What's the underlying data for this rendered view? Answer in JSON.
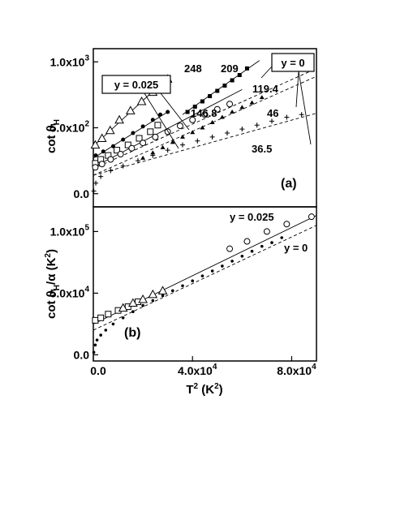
{
  "chart_data": [
    {
      "type": "scatter",
      "panel_label": "(a)",
      "ylabel": "cot θ",
      "ylabel_sub": "H",
      "xlim": [
        0,
        90000
      ],
      "ylim": [
        -100,
        1100
      ],
      "y_ticks": [
        {
          "value": 0,
          "label": "0.0"
        },
        {
          "value": 500,
          "label": "5.0x10",
          "exp": "2"
        },
        {
          "value": 1000,
          "label": "1.0x10",
          "exp": "3"
        }
      ],
      "boxes": {
        "left": "y = 0.025",
        "right": "y = 0"
      },
      "annotations": [
        "248",
        "209",
        "119.4",
        "146.8",
        "46",
        "36.5"
      ],
      "series": [
        {
          "marker": "triangle",
          "points": [
            [
              800,
              370
            ],
            [
              3500,
              420
            ],
            [
              6800,
              480
            ],
            [
              10500,
              560
            ],
            [
              15000,
              630
            ],
            [
              19500,
              700
            ],
            [
              24000,
              770
            ],
            [
              28500,
              840
            ],
            [
              30000,
              870
            ]
          ],
          "fit": [
            [
              0,
              360
            ],
            [
              30000,
              880
            ]
          ]
        },
        {
          "marker": "filled-square",
          "points": [
            [
              38000,
              620
            ],
            [
              41000,
              660
            ],
            [
              44000,
              700
            ],
            [
              47000,
              740
            ],
            [
              50000,
              780
            ],
            [
              53000,
              820
            ],
            [
              56000,
              860
            ],
            [
              59000,
              900
            ],
            [
              62000,
              950
            ]
          ],
          "fit": [
            [
              36000,
              600
            ],
            [
              67000,
              1010
            ]
          ]
        },
        {
          "marker": "filled-circle",
          "points": [
            [
              1000,
              290
            ],
            [
              4000,
              320
            ],
            [
              8000,
              360
            ],
            [
              12000,
              410
            ],
            [
              16000,
              460
            ],
            [
              20000,
              510
            ],
            [
              24000,
              560
            ],
            [
              27000,
              600
            ],
            [
              30000,
              620
            ]
          ],
          "fit": [
            [
              0,
              270
            ],
            [
              30000,
              620
            ]
          ]
        },
        {
          "marker": "open-square",
          "points": [
            [
              800,
              230
            ],
            [
              3000,
              260
            ],
            [
              6000,
              290
            ],
            [
              9500,
              330
            ],
            [
              14000,
              370
            ],
            [
              18500,
              420
            ],
            [
              23000,
              470
            ],
            [
              26000,
              520
            ]
          ],
          "fit": [
            [
              0,
              200
            ],
            [
              60000,
              790
            ]
          ]
        },
        {
          "marker": "open-circle",
          "points": [
            [
              800,
              200
            ],
            [
              3500,
              225
            ],
            [
              7000,
              260
            ],
            [
              11000,
              300
            ],
            [
              15500,
              345
            ],
            [
              20000,
              385
            ],
            [
              25000,
              430
            ],
            [
              30000,
              470
            ],
            [
              35000,
              515
            ],
            [
              40000,
              560
            ],
            [
              45000,
              600
            ],
            [
              50000,
              640
            ],
            [
              55000,
              680
            ]
          ],
          "fit": [
            [
              0,
              190
            ],
            [
              90000,
              950
            ]
          ]
        },
        {
          "marker": "small-triangle",
          "points": [
            [
              20000,
              270
            ],
            [
              24000,
              310
            ],
            [
              28000,
              350
            ],
            [
              32000,
              390
            ],
            [
              36000,
              430
            ],
            [
              40000,
              465
            ],
            [
              44000,
              500
            ],
            [
              48000,
              540
            ],
            [
              52000,
              580
            ],
            [
              56000,
              620
            ],
            [
              60000,
              655
            ],
            [
              64000,
              690
            ],
            [
              68000,
              730
            ]
          ],
          "fit": [
            [
              0,
              140
            ],
            [
              90000,
              890
            ]
          ]
        },
        {
          "marker": "plus",
          "points": [
            [
              200,
              20
            ],
            [
              1000,
              80
            ],
            [
              3000,
              130
            ],
            [
              7000,
              175
            ],
            [
              12000,
              210
            ],
            [
              18000,
              250
            ],
            [
              24000,
              290
            ],
            [
              30000,
              330
            ],
            [
              36000,
              370
            ],
            [
              42000,
              400
            ],
            [
              48000,
              430
            ],
            [
              54000,
              460
            ],
            [
              60000,
              490
            ],
            [
              66000,
              520
            ],
            [
              72000,
              550
            ],
            [
              78000,
              580
            ],
            [
              84000,
              600
            ]
          ],
          "fit": [
            [
              0,
              140
            ],
            [
              90000,
              610
            ]
          ]
        }
      ]
    },
    {
      "type": "scatter",
      "panel_label": "(b)",
      "ylabel": "cot θ",
      "ylabel_sub": "H",
      "ylabel_tail": "/α (K",
      "ylabel_exp": "2",
      "ylabel_end": ")",
      "xlabel": "T",
      "xlabel_exp": "2",
      "xlabel_tail": " (K",
      "xlabel_exp2": "2",
      "xlabel_end": ")",
      "xlim": [
        0,
        90000
      ],
      "ylim": [
        -5000,
        120000
      ],
      "x_ticks": [
        {
          "value": 0,
          "label": "0.0"
        },
        {
          "value": 40000,
          "label": "4.0x10",
          "exp": "4"
        },
        {
          "value": 80000,
          "label": "8.0x10",
          "exp": "4"
        }
      ],
      "y_ticks": [
        {
          "value": 0,
          "label": "0.0"
        },
        {
          "value": 50000,
          "label": "5.0x10",
          "exp": "4"
        },
        {
          "value": 100000,
          "label": "1.0x10",
          "exp": "5"
        }
      ],
      "annotations": [
        "y = 0.025",
        "y = 0"
      ],
      "series": [
        {
          "marker": "open-square",
          "points": [
            [
              800,
              28000
            ],
            [
              3000,
              30000
            ],
            [
              6000,
              33000
            ],
            [
              10000,
              36000
            ],
            [
              14000,
              39000
            ],
            [
              18000,
              43000
            ]
          ]
        },
        {
          "marker": "triangle",
          "points": [
            [
              12000,
              38000
            ],
            [
              16000,
              42000
            ],
            [
              20000,
              45000
            ],
            [
              24000,
              49000
            ],
            [
              28000,
              52000
            ]
          ]
        },
        {
          "marker": "open-circle",
          "points": [
            [
              55000,
              86000
            ],
            [
              62000,
              92000
            ],
            [
              70000,
              100000
            ],
            [
              78000,
              106000
            ],
            [
              88000,
              112000
            ]
          ]
        },
        {
          "marker": "dots",
          "points": [
            [
              200,
              2000
            ],
            [
              800,
              8000
            ],
            [
              1500,
              12000
            ],
            [
              3000,
              16000
            ],
            [
              5000,
              20000
            ],
            [
              8000,
              25000
            ],
            [
              12000,
              30000
            ],
            [
              16000,
              35000
            ],
            [
              20000,
              40000
            ],
            [
              24000,
              44000
            ],
            [
              28000,
              48000
            ],
            [
              32000,
              52000
            ],
            [
              36000,
              56000
            ],
            [
              40000,
              60000
            ],
            [
              44000,
              64000
            ],
            [
              48000,
              68000
            ],
            [
              52000,
              72000
            ],
            [
              56000,
              76000
            ],
            [
              60000,
              80000
            ],
            [
              64000,
              84000
            ],
            [
              68000,
              88000
            ],
            [
              72000,
              91000
            ],
            [
              76000,
              95000
            ]
          ]
        }
      ],
      "fits": [
        {
          "style": "solid",
          "points": [
            [
              0,
              25000
            ],
            [
              90000,
              113000
            ]
          ]
        },
        {
          "style": "dashed",
          "points": [
            [
              0,
              20000
            ],
            [
              90000,
              105000
            ]
          ]
        }
      ]
    }
  ]
}
